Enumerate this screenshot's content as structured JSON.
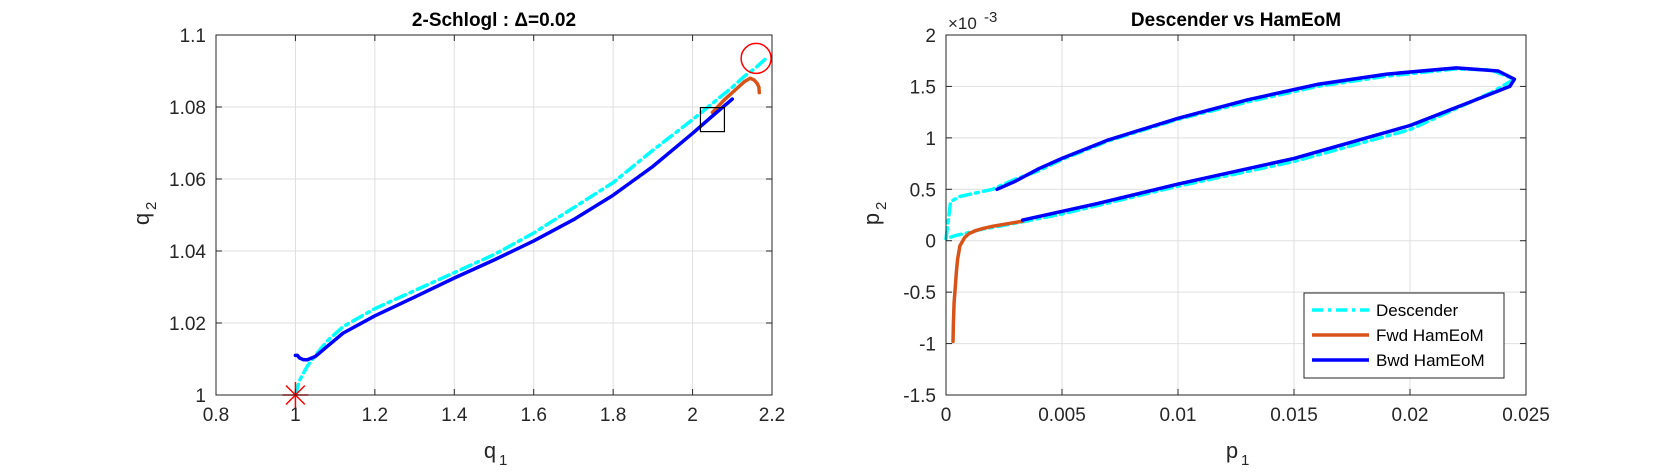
{
  "chart_data": [
    {
      "type": "line",
      "title": "2-Schlogl : Δ=0.02",
      "xlabel": "q",
      "xlabel_sub": "1",
      "ylabel": "q",
      "ylabel_sub": "2",
      "xlim": [
        0.8,
        2.2
      ],
      "ylim": [
        1.0,
        1.1
      ],
      "xticks": [
        0.8,
        1.0,
        1.2,
        1.4,
        1.6,
        1.8,
        2.0,
        2.2
      ],
      "xtick_labels": [
        "0.8",
        "1",
        "1.2",
        "1.4",
        "1.6",
        "1.8",
        "2",
        "2.2"
      ],
      "yticks": [
        1.0,
        1.02,
        1.04,
        1.06,
        1.08,
        1.1
      ],
      "ytick_labels": [
        "1",
        "1.02",
        "1.04",
        "1.06",
        "1.08",
        "1.1"
      ],
      "grid": true,
      "series": [
        {
          "color": "#00ffff",
          "style": "dashdot",
          "x": [
            1.0,
            1.01,
            1.03,
            1.05,
            1.08,
            1.12,
            1.2,
            1.3,
            1.4,
            1.5,
            1.6,
            1.7,
            1.8,
            1.9,
            2.0,
            2.05,
            2.1,
            2.13,
            2.16,
            2.19
          ],
          "y": [
            1.0,
            1.004,
            1.008,
            1.011,
            1.015,
            1.019,
            1.024,
            1.029,
            1.034,
            1.039,
            1.045,
            1.052,
            1.059,
            1.068,
            1.0765,
            1.081,
            1.0855,
            1.0885,
            1.091,
            1.094
          ]
        },
        {
          "color": "#d95319",
          "style": "solid",
          "x": [
            2.05,
            2.08,
            2.11,
            2.13,
            2.145,
            2.155,
            2.163,
            2.167,
            2.168
          ],
          "y": [
            1.0785,
            1.082,
            1.085,
            1.087,
            1.088,
            1.0875,
            1.0865,
            1.0855,
            1.084
          ]
        },
        {
          "color": "#0000ff",
          "style": "solid",
          "x": [
            1.0,
            1.005,
            1.01,
            1.02,
            1.03,
            1.05,
            1.08,
            1.12,
            1.2,
            1.3,
            1.4,
            1.5,
            1.6,
            1.7,
            1.8,
            1.9,
            2.0,
            2.05,
            2.1
          ],
          "y": [
            1.011,
            1.011,
            1.0103,
            1.0098,
            1.0098,
            1.0107,
            1.0135,
            1.0172,
            1.022,
            1.0272,
            1.0325,
            1.0375,
            1.0428,
            1.0487,
            1.0555,
            1.0635,
            1.0727,
            1.0775,
            1.0822
          ]
        }
      ],
      "markers": [
        {
          "type": "star",
          "x": 1.0,
          "y": 1.0,
          "color": "#ff0000"
        },
        {
          "type": "circle",
          "x": 2.16,
          "y": 1.0935,
          "color": "#ff0000"
        },
        {
          "type": "square",
          "x": 2.05,
          "y": 1.0765,
          "color": "#000000"
        }
      ]
    },
    {
      "type": "line",
      "title": "Descender vs HamEoM",
      "xlabel": "p",
      "xlabel_sub": "1",
      "ylabel": "p",
      "ylabel_sub": "2",
      "xlim": [
        0,
        0.025
      ],
      "ylim": [
        -1.5,
        2.0
      ],
      "y_multiplier": "×10",
      "y_multiplier_exp": "-3",
      "xticks": [
        0,
        0.005,
        0.01,
        0.015,
        0.02,
        0.025
      ],
      "xtick_labels": [
        "0",
        "0.005",
        "0.01",
        "0.015",
        "0.02",
        "0.025"
      ],
      "yticks": [
        -1.5,
        -1.0,
        -0.5,
        0.0,
        0.5,
        1.0,
        1.5,
        2.0
      ],
      "ytick_labels": [
        "-1.5",
        "-1",
        "-0.5",
        "0",
        "0.5",
        "1",
        "1.5",
        "2"
      ],
      "grid": true,
      "legend_position": "bottom-right",
      "series": [
        {
          "name": "Descender",
          "color": "#00ffff",
          "style": "dashdot",
          "x": [
            0.0,
            0.0002,
            0.0006,
            0.0012,
            0.002,
            0.003,
            0.004,
            0.005,
            0.007,
            0.01,
            0.013,
            0.016,
            0.019,
            0.022,
            0.0235,
            0.0245,
            0.0235,
            0.02,
            0.015,
            0.01,
            0.005,
            0.0025,
            0.0015,
            0.001,
            0.0004,
            0.0
          ],
          "y": [
            0.02,
            0.38,
            0.43,
            0.46,
            0.5,
            0.6,
            0.68,
            0.79,
            0.97,
            1.18,
            1.35,
            1.5,
            1.6,
            1.67,
            1.66,
            1.57,
            1.44,
            1.08,
            0.77,
            0.53,
            0.26,
            0.15,
            0.11,
            0.08,
            0.05,
            0.02
          ]
        },
        {
          "name": "Fwd HamEoM",
          "color": "#d95319",
          "style": "solid",
          "x": [
            0.0003,
            0.00032,
            0.00035,
            0.0004,
            0.00045,
            0.0005,
            0.0006,
            0.0008,
            0.001,
            0.0013,
            0.0016,
            0.002,
            0.0025,
            0.0033
          ],
          "y": [
            -0.98,
            -0.8,
            -0.6,
            -0.45,
            -0.3,
            -0.18,
            -0.05,
            0.03,
            0.07,
            0.1,
            0.12,
            0.14,
            0.16,
            0.19
          ]
        },
        {
          "name": "Bwd HamEoM",
          "color": "#0000ff",
          "style": "solid",
          "x": [
            0.0022,
            0.003,
            0.004,
            0.005,
            0.007,
            0.01,
            0.013,
            0.016,
            0.019,
            0.022,
            0.0238,
            0.0245,
            0.0243,
            0.0225,
            0.02,
            0.015,
            0.01,
            0.0065,
            0.0033
          ],
          "y": [
            0.5,
            0.58,
            0.7,
            0.8,
            0.98,
            1.19,
            1.37,
            1.52,
            1.62,
            1.68,
            1.65,
            1.57,
            1.5,
            1.34,
            1.12,
            0.8,
            0.55,
            0.36,
            0.2
          ]
        }
      ]
    }
  ]
}
